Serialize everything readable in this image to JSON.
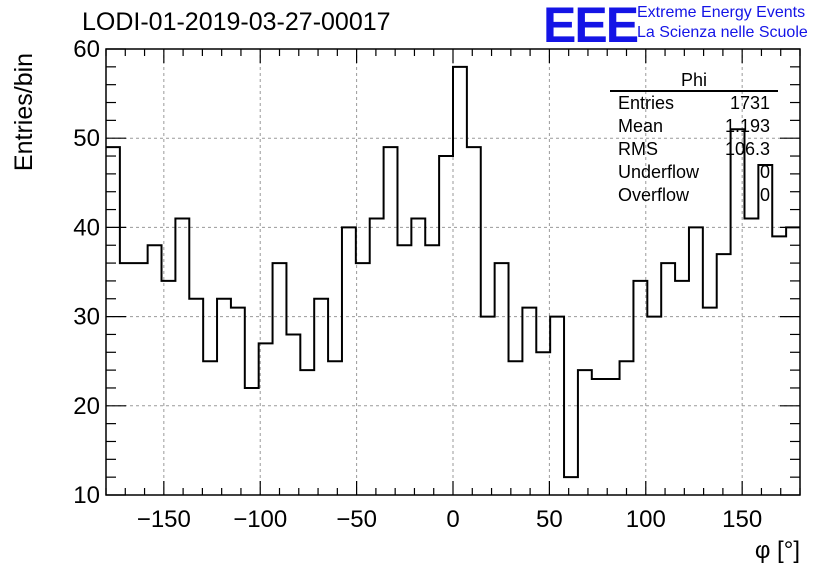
{
  "title": "LODI-01-2019-03-27-00017",
  "logo": {
    "mark": "EEE",
    "line1": "Extreme Energy Events",
    "line2": "La Scienza nelle Scuole"
  },
  "stats": {
    "name": "Phi",
    "rows": [
      {
        "key": "Entries",
        "value": "1731"
      },
      {
        "key": "Mean",
        "value": "1.193"
      },
      {
        "key": "RMS",
        "value": "106.3"
      },
      {
        "key": "Underflow",
        "value": "0"
      },
      {
        "key": "Overflow",
        "value": "0"
      }
    ]
  },
  "colors": {
    "line": "#000000",
    "grid": "#9a9a9a",
    "accent": "#1414e6"
  },
  "chart_data": {
    "type": "line",
    "subtype": "step-histogram",
    "title": "LODI-01-2019-03-27-00017",
    "xlabel": "φ [°]",
    "ylabel": "Entries/bin",
    "xlim": [
      -180,
      180
    ],
    "ylim": [
      10,
      60
    ],
    "bin_width": 7.2,
    "x_ticks": [
      -150,
      -100,
      -50,
      0,
      50,
      100,
      150
    ],
    "x_tick_labels": [
      "−150",
      "−100",
      "−50",
      "0",
      "50",
      "100",
      "150"
    ],
    "y_ticks": [
      10,
      20,
      30,
      40,
      50,
      60
    ],
    "grid": true,
    "values": [
      49,
      36,
      36,
      38,
      34,
      41,
      32,
      25,
      32,
      31,
      22,
      27,
      36,
      28,
      24,
      32,
      25,
      40,
      36,
      41,
      49,
      38,
      41,
      38,
      48,
      58,
      49,
      30,
      36,
      25,
      31,
      26,
      30,
      12,
      24,
      23,
      23,
      25,
      34,
      30,
      36,
      34,
      40,
      31,
      37,
      51,
      41,
      47,
      39,
      40
    ]
  }
}
